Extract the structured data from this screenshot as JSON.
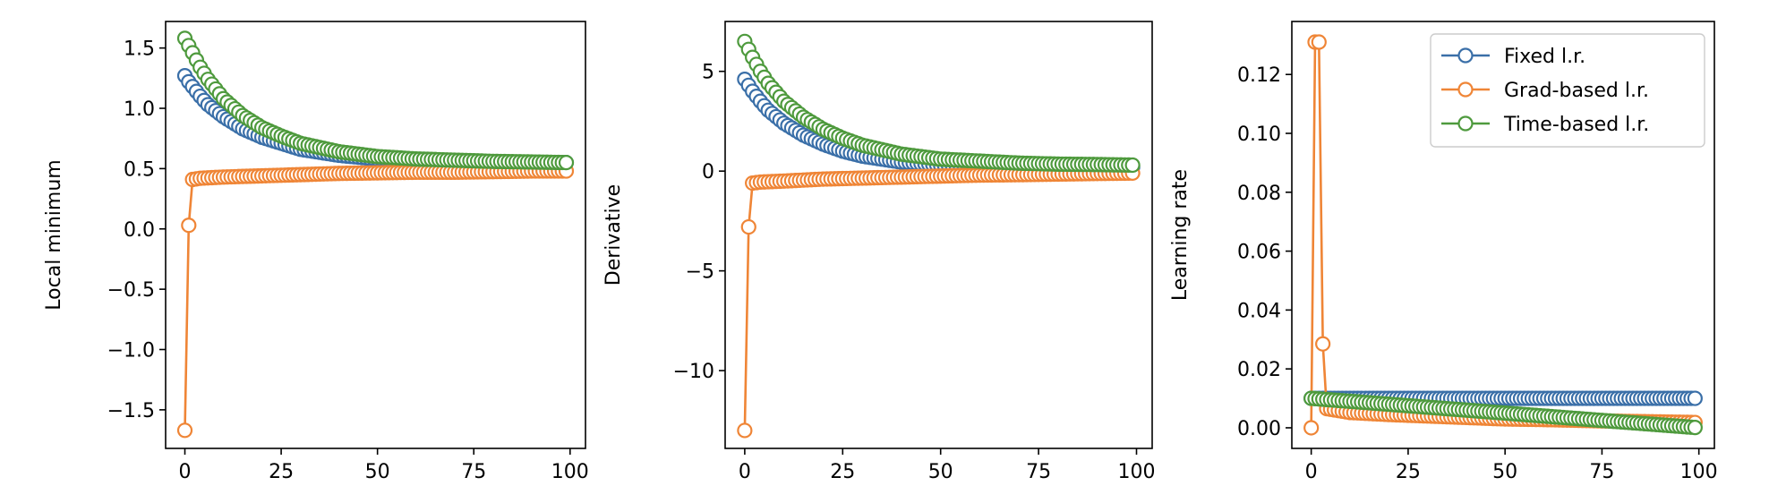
{
  "colors": {
    "fixed": "#3a6fa8",
    "grad": "#ef8536",
    "time": "#4e9a3d",
    "frame": "#000000",
    "background": "#ffffff"
  },
  "legend": {
    "placement": "top-right",
    "entries": [
      "Fixed l.r.",
      "Grad-based l.r.",
      "Time-based l.r."
    ]
  },
  "chart_data": [
    {
      "type": "line",
      "marker": "hollow-circle",
      "xlabel": "",
      "ylabel": "Local minimum",
      "xlim": [
        -5,
        104
      ],
      "ylim": [
        -1.82,
        1.72
      ],
      "xticks": [
        0,
        25,
        50,
        75,
        100
      ],
      "xtick_labels": [
        "0",
        "25",
        "50",
        "75",
        "100"
      ],
      "yticks": [
        -1.5,
        -1.0,
        -0.5,
        0.0,
        0.5,
        1.0,
        1.5
      ],
      "ytick_labels": [
        "−1.5",
        "−1.0",
        "−0.5",
        "0.0",
        "0.5",
        "1.0",
        "1.5"
      ],
      "n_points": 100,
      "series": [
        {
          "name": "Fixed l.r.",
          "color_key": "fixed",
          "points": [
            [
              0,
              1.27
            ],
            [
              1,
              1.22
            ],
            [
              2,
              1.18
            ],
            [
              4,
              1.1
            ],
            [
              6,
              1.03
            ],
            [
              10,
              0.93
            ],
            [
              15,
              0.83
            ],
            [
              20,
              0.76
            ],
            [
              25,
              0.71
            ],
            [
              30,
              0.66
            ],
            [
              40,
              0.61
            ],
            [
              50,
              0.58
            ],
            [
              60,
              0.57
            ],
            [
              70,
              0.56
            ],
            [
              80,
              0.555
            ],
            [
              90,
              0.55
            ],
            [
              99,
              0.55
            ]
          ]
        },
        {
          "name": "Grad-based l.r.",
          "color_key": "grad",
          "points": [
            [
              0,
              -1.67
            ],
            [
              1,
              0.03
            ],
            [
              2,
              0.41
            ],
            [
              4,
              0.42
            ],
            [
              10,
              0.43
            ],
            [
              20,
              0.44
            ],
            [
              30,
              0.45
            ],
            [
              40,
              0.46
            ],
            [
              50,
              0.465
            ],
            [
              60,
              0.47
            ],
            [
              70,
              0.47
            ],
            [
              80,
              0.475
            ],
            [
              90,
              0.48
            ],
            [
              99,
              0.48
            ]
          ]
        },
        {
          "name": "Time-based l.r.",
          "color_key": "time",
          "points": [
            [
              0,
              1.58
            ],
            [
              1,
              1.52
            ],
            [
              2,
              1.46
            ],
            [
              4,
              1.34
            ],
            [
              6,
              1.24
            ],
            [
              10,
              1.08
            ],
            [
              15,
              0.94
            ],
            [
              20,
              0.84
            ],
            [
              25,
              0.77
            ],
            [
              30,
              0.71
            ],
            [
              40,
              0.64
            ],
            [
              50,
              0.6
            ],
            [
              60,
              0.58
            ],
            [
              70,
              0.57
            ],
            [
              80,
              0.56
            ],
            [
              90,
              0.555
            ],
            [
              99,
              0.55
            ]
          ]
        }
      ]
    },
    {
      "type": "line",
      "marker": "hollow-circle",
      "xlabel": "",
      "ylabel": "Derivative",
      "xlim": [
        -5,
        104
      ],
      "ylim": [
        -13.9,
        7.5
      ],
      "xticks": [
        0,
        25,
        50,
        75,
        100
      ],
      "xtick_labels": [
        "0",
        "25",
        "50",
        "75",
        "100"
      ],
      "yticks": [
        -10,
        -5,
        0,
        5
      ],
      "ytick_labels": [
        "−10",
        "−5",
        "0",
        "5"
      ],
      "n_points": 100,
      "series": [
        {
          "name": "Fixed l.r.",
          "color_key": "fixed",
          "points": [
            [
              0,
              4.6
            ],
            [
              1,
              4.3
            ],
            [
              2,
              4.0
            ],
            [
              4,
              3.5
            ],
            [
              6,
              3.05
            ],
            [
              10,
              2.4
            ],
            [
              15,
              1.8
            ],
            [
              20,
              1.35
            ],
            [
              25,
              1.0
            ],
            [
              30,
              0.75
            ],
            [
              40,
              0.45
            ],
            [
              50,
              0.3
            ],
            [
              60,
              0.25
            ],
            [
              70,
              0.2
            ],
            [
              80,
              0.2
            ],
            [
              90,
              0.2
            ],
            [
              99,
              0.2
            ]
          ]
        },
        {
          "name": "Grad-based l.r.",
          "color_key": "grad",
          "points": [
            [
              0,
              -13.0
            ],
            [
              1,
              -2.8
            ],
            [
              2,
              -0.6
            ],
            [
              4,
              -0.55
            ],
            [
              10,
              -0.5
            ],
            [
              20,
              -0.4
            ],
            [
              30,
              -0.35
            ],
            [
              40,
              -0.3
            ],
            [
              50,
              -0.25
            ],
            [
              60,
              -0.2
            ],
            [
              70,
              -0.18
            ],
            [
              80,
              -0.15
            ],
            [
              90,
              -0.12
            ],
            [
              99,
              -0.1
            ]
          ]
        },
        {
          "name": "Time-based l.r.",
          "color_key": "time",
          "points": [
            [
              0,
              6.5
            ],
            [
              1,
              6.1
            ],
            [
              2,
              5.7
            ],
            [
              4,
              5.0
            ],
            [
              6,
              4.4
            ],
            [
              10,
              3.5
            ],
            [
              15,
              2.7
            ],
            [
              20,
              2.1
            ],
            [
              25,
              1.65
            ],
            [
              30,
              1.3
            ],
            [
              40,
              0.85
            ],
            [
              50,
              0.6
            ],
            [
              60,
              0.5
            ],
            [
              70,
              0.4
            ],
            [
              80,
              0.35
            ],
            [
              90,
              0.33
            ],
            [
              99,
              0.3
            ]
          ]
        }
      ]
    },
    {
      "type": "line",
      "marker": "hollow-circle",
      "xlabel": "",
      "ylabel": "Learning rate",
      "xlim": [
        -5,
        104
      ],
      "ylim": [
        -0.007,
        0.138
      ],
      "xticks": [
        0,
        25,
        50,
        75,
        100
      ],
      "xtick_labels": [
        "0",
        "25",
        "50",
        "75",
        "100"
      ],
      "yticks": [
        0.0,
        0.02,
        0.04,
        0.06,
        0.08,
        0.1,
        0.12
      ],
      "ytick_labels": [
        "0.00",
        "0.02",
        "0.04",
        "0.06",
        "0.08",
        "0.10",
        "0.12"
      ],
      "n_points": 100,
      "series": [
        {
          "name": "Fixed l.r.",
          "color_key": "fixed",
          "points": [
            [
              0,
              0.01
            ],
            [
              99,
              0.01
            ]
          ]
        },
        {
          "name": "Grad-based l.r.",
          "color_key": "grad",
          "points": [
            [
              0,
              0.0
            ],
            [
              1,
              0.131
            ],
            [
              2,
              0.131
            ],
            [
              3,
              0.0285
            ],
            [
              4,
              0.0065
            ],
            [
              10,
              0.0052
            ],
            [
              20,
              0.0045
            ],
            [
              30,
              0.004
            ],
            [
              40,
              0.0035
            ],
            [
              50,
              0.003
            ],
            [
              60,
              0.0028
            ],
            [
              70,
              0.0025
            ],
            [
              80,
              0.0022
            ],
            [
              90,
              0.002
            ],
            [
              99,
              0.0018
            ]
          ]
        },
        {
          "name": "Time-based l.r.",
          "color_key": "time",
          "points": [
            [
              0,
              0.01
            ],
            [
              99,
              0.0001
            ]
          ]
        }
      ]
    }
  ]
}
